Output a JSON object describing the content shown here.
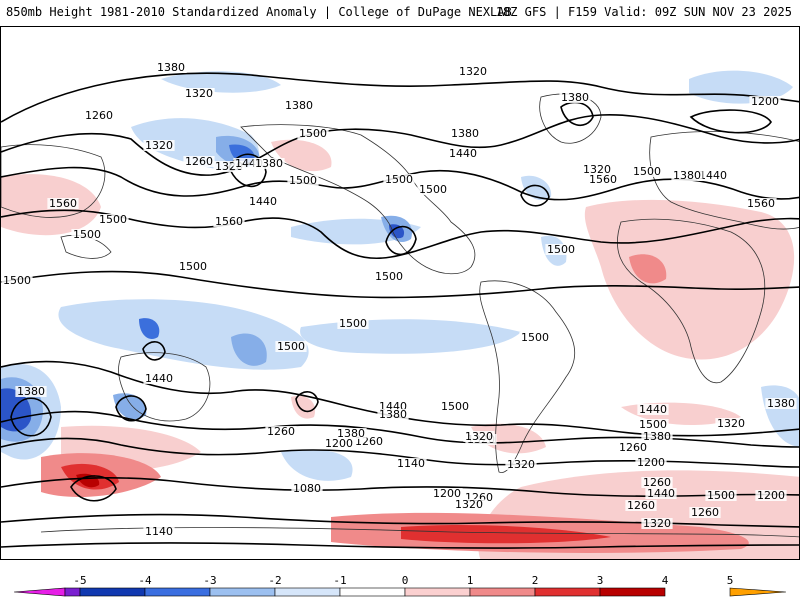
{
  "header": {
    "title_left": "850mb Height 1981-2010 Standardized Anomaly | College of DuPage NEXLAB",
    "title_right": "18Z GFS | F159 Valid: 09Z SUN NOV 23 2025"
  },
  "map": {
    "contour_labels": [
      "1260",
      "1320",
      "1380",
      "1440",
      "1500",
      "1560",
      "1200",
      "1140",
      "1080"
    ],
    "label_instances": [
      "1260",
      "1320",
      "1260",
      "1380",
      "1320",
      "1440",
      "1380",
      "1260",
      "1320",
      "1500",
      "1560",
      "1500",
      "1440",
      "1560",
      "1500",
      "1320",
      "1380",
      "1380",
      "1440",
      "1500",
      "1320",
      "1500",
      "1560",
      "1440",
      "1380",
      "1200",
      "1500",
      "1560",
      "1500",
      "1500",
      "1500",
      "1500",
      "1500",
      "1500",
      "1500",
      "1440",
      "1500",
      "1380",
      "1500",
      "1440",
      "1380",
      "1320",
      "1440",
      "1500",
      "1380",
      "1320",
      "1260",
      "1200",
      "1260",
      "1140",
      "1080",
      "1140",
      "1200",
      "1260",
      "1320",
      "1260",
      "1380",
      "1320",
      "1200",
      "1260",
      "1320",
      "1380",
      "1440",
      "1500",
      "1260",
      "1320",
      "1200",
      "1260",
      "1380",
      "1320"
    ]
  },
  "colorbar": {
    "ticks": [
      "-5",
      "-4",
      "-3",
      "-2",
      "-1",
      "0",
      "1",
      "2",
      "3",
      "4",
      "5"
    ],
    "colors": [
      "#e61ee6",
      "#7a1fd0",
      "#1038b0",
      "#3a6ee0",
      "#9cc0f0",
      "#d6e6fa",
      "#ffffff",
      "#fbd0d0",
      "#f08a8a",
      "#e03030",
      "#b80000",
      "#ffa000"
    ]
  }
}
